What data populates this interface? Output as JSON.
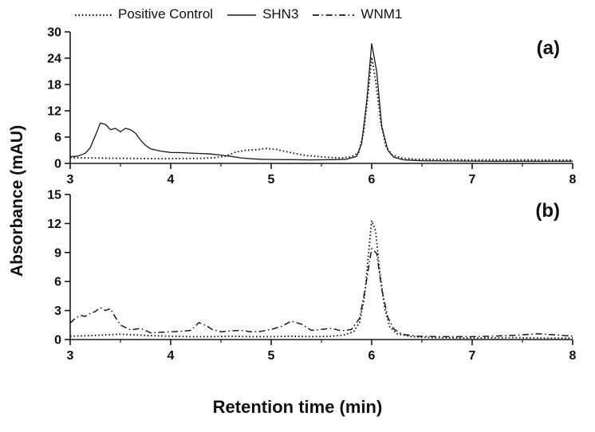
{
  "labels": {
    "x": "Retention time (min)",
    "y": "Absorbance (mAU)"
  },
  "legend": {
    "position": "top",
    "items": [
      {
        "label": "Positive Control",
        "style": "dotted"
      },
      {
        "label": "SHN3",
        "style": "solid"
      },
      {
        "label": "WNM1",
        "style": "dashdot"
      }
    ]
  },
  "line_color": "#1a1a1a",
  "chart_data": [
    {
      "type": "line",
      "panel_label": "(a)",
      "xlabel": "Retention time (min)",
      "ylabel": "Absorbance (mAU)",
      "xlim": [
        3,
        8
      ],
      "ylim": [
        0,
        30
      ],
      "xticks": [
        3,
        4,
        5,
        6,
        7,
        8
      ],
      "yticks": [
        0,
        6,
        12,
        18,
        24,
        30
      ],
      "grid": false,
      "series": [
        {
          "name": "Positive Control",
          "style": "dotted",
          "points": [
            [
              3.0,
              1.3
            ],
            [
              3.15,
              1.25
            ],
            [
              3.3,
              1.2
            ],
            [
              3.5,
              1.15
            ],
            [
              3.7,
              1.1
            ],
            [
              3.9,
              1.05
            ],
            [
              4.1,
              1.1
            ],
            [
              4.3,
              1.15
            ],
            [
              4.45,
              1.3
            ],
            [
              4.55,
              1.7
            ],
            [
              4.65,
              2.6
            ],
            [
              4.75,
              3.0
            ],
            [
              4.85,
              3.1
            ],
            [
              4.95,
              3.4
            ],
            [
              5.05,
              3.2
            ],
            [
              5.15,
              2.7
            ],
            [
              5.25,
              2.2
            ],
            [
              5.35,
              1.8
            ],
            [
              5.5,
              1.5
            ],
            [
              5.6,
              1.35
            ],
            [
              5.7,
              1.25
            ],
            [
              5.8,
              1.5
            ],
            [
              5.87,
              2.5
            ],
            [
              5.92,
              7.0
            ],
            [
              5.96,
              15.0
            ],
            [
              6.0,
              24.2
            ],
            [
              6.04,
              19.0
            ],
            [
              6.09,
              9.5
            ],
            [
              6.14,
              4.0
            ],
            [
              6.2,
              2.0
            ],
            [
              6.3,
              1.2
            ],
            [
              6.45,
              0.95
            ],
            [
              6.7,
              0.85
            ],
            [
              7.0,
              0.8
            ],
            [
              7.3,
              0.8
            ],
            [
              7.6,
              0.8
            ],
            [
              8.0,
              0.75
            ]
          ]
        },
        {
          "name": "SHN3",
          "style": "solid",
          "points": [
            [
              3.0,
              1.5
            ],
            [
              3.08,
              1.7
            ],
            [
              3.15,
              2.3
            ],
            [
              3.2,
              3.6
            ],
            [
              3.25,
              6.3
            ],
            [
              3.3,
              9.2
            ],
            [
              3.35,
              8.9
            ],
            [
              3.4,
              7.7
            ],
            [
              3.45,
              8.0
            ],
            [
              3.5,
              7.2
            ],
            [
              3.55,
              8.0
            ],
            [
              3.6,
              7.7
            ],
            [
              3.65,
              6.9
            ],
            [
              3.7,
              5.3
            ],
            [
              3.75,
              4.1
            ],
            [
              3.8,
              3.3
            ],
            [
              3.9,
              2.8
            ],
            [
              4.0,
              2.5
            ],
            [
              4.1,
              2.45
            ],
            [
              4.2,
              2.35
            ],
            [
              4.3,
              2.25
            ],
            [
              4.4,
              2.15
            ],
            [
              4.5,
              1.9
            ],
            [
              4.6,
              1.6
            ],
            [
              4.7,
              1.25
            ],
            [
              4.8,
              1.05
            ],
            [
              4.9,
              0.95
            ],
            [
              5.0,
              0.9
            ],
            [
              5.2,
              0.85
            ],
            [
              5.4,
              0.8
            ],
            [
              5.6,
              0.85
            ],
            [
              5.75,
              0.95
            ],
            [
              5.85,
              1.6
            ],
            [
              5.9,
              4.5
            ],
            [
              5.95,
              14.0
            ],
            [
              6.0,
              27.3
            ],
            [
              6.05,
              21.0
            ],
            [
              6.1,
              8.5
            ],
            [
              6.16,
              3.0
            ],
            [
              6.22,
              1.4
            ],
            [
              6.32,
              0.8
            ],
            [
              6.5,
              0.6
            ],
            [
              6.8,
              0.55
            ],
            [
              7.2,
              0.5
            ],
            [
              7.6,
              0.5
            ],
            [
              8.0,
              0.5
            ]
          ]
        }
      ]
    },
    {
      "type": "line",
      "panel_label": "(b)",
      "xlabel": "Retention time (min)",
      "ylabel": "Absorbance (mAU)",
      "xlim": [
        3,
        8
      ],
      "ylim": [
        0,
        15
      ],
      "xticks": [
        3,
        4,
        5,
        6,
        7,
        8
      ],
      "yticks": [
        0,
        3,
        6,
        9,
        12,
        15
      ],
      "grid": false,
      "series": [
        {
          "name": "Positive Control",
          "style": "dotted",
          "points": [
            [
              3.0,
              0.35
            ],
            [
              3.2,
              0.4
            ],
            [
              3.4,
              0.5
            ],
            [
              3.5,
              0.55
            ],
            [
              3.6,
              0.5
            ],
            [
              3.8,
              0.4
            ],
            [
              4.0,
              0.35
            ],
            [
              4.2,
              0.3
            ],
            [
              4.4,
              0.3
            ],
            [
              4.6,
              0.35
            ],
            [
              4.8,
              0.3
            ],
            [
              5.0,
              0.3
            ],
            [
              5.2,
              0.35
            ],
            [
              5.4,
              0.3
            ],
            [
              5.6,
              0.35
            ],
            [
              5.72,
              0.45
            ],
            [
              5.82,
              0.8
            ],
            [
              5.88,
              1.8
            ],
            [
              5.93,
              4.5
            ],
            [
              5.97,
              9.0
            ],
            [
              6.0,
              12.3
            ],
            [
              6.04,
              11.2
            ],
            [
              6.08,
              7.0
            ],
            [
              6.13,
              3.2
            ],
            [
              6.18,
              1.3
            ],
            [
              6.25,
              0.6
            ],
            [
              6.4,
              0.3
            ],
            [
              6.6,
              0.2
            ],
            [
              7.0,
              0.15
            ],
            [
              7.4,
              0.2
            ],
            [
              7.7,
              0.15
            ],
            [
              8.0,
              0.15
            ]
          ]
        },
        {
          "name": "WNM1",
          "style": "dashdot",
          "points": [
            [
              3.0,
              1.7
            ],
            [
              3.05,
              2.2
            ],
            [
              3.1,
              2.5
            ],
            [
              3.15,
              2.4
            ],
            [
              3.2,
              2.7
            ],
            [
              3.25,
              2.9
            ],
            [
              3.3,
              3.3
            ],
            [
              3.35,
              3.0
            ],
            [
              3.4,
              3.2
            ],
            [
              3.45,
              2.3
            ],
            [
              3.5,
              1.5
            ],
            [
              3.6,
              1.0
            ],
            [
              3.7,
              1.15
            ],
            [
              3.8,
              0.7
            ],
            [
              3.9,
              0.75
            ],
            [
              4.0,
              0.8
            ],
            [
              4.1,
              0.85
            ],
            [
              4.2,
              0.95
            ],
            [
              4.28,
              1.75
            ],
            [
              4.35,
              1.45
            ],
            [
              4.42,
              1.0
            ],
            [
              4.5,
              0.8
            ],
            [
              4.6,
              0.9
            ],
            [
              4.7,
              0.95
            ],
            [
              4.8,
              0.8
            ],
            [
              4.9,
              0.85
            ],
            [
              5.0,
              1.05
            ],
            [
              5.1,
              1.35
            ],
            [
              5.2,
              1.9
            ],
            [
              5.3,
              1.6
            ],
            [
              5.4,
              0.95
            ],
            [
              5.5,
              1.05
            ],
            [
              5.6,
              1.15
            ],
            [
              5.7,
              0.9
            ],
            [
              5.8,
              1.05
            ],
            [
              5.88,
              2.2
            ],
            [
              5.94,
              5.5
            ],
            [
              6.0,
              9.4
            ],
            [
              6.05,
              8.9
            ],
            [
              6.1,
              5.2
            ],
            [
              6.16,
              2.3
            ],
            [
              6.22,
              1.1
            ],
            [
              6.3,
              0.55
            ],
            [
              6.45,
              0.35
            ],
            [
              6.7,
              0.3
            ],
            [
              7.0,
              0.3
            ],
            [
              7.2,
              0.35
            ],
            [
              7.45,
              0.45
            ],
            [
              7.65,
              0.6
            ],
            [
              7.8,
              0.5
            ],
            [
              8.0,
              0.35
            ]
          ]
        }
      ]
    }
  ]
}
